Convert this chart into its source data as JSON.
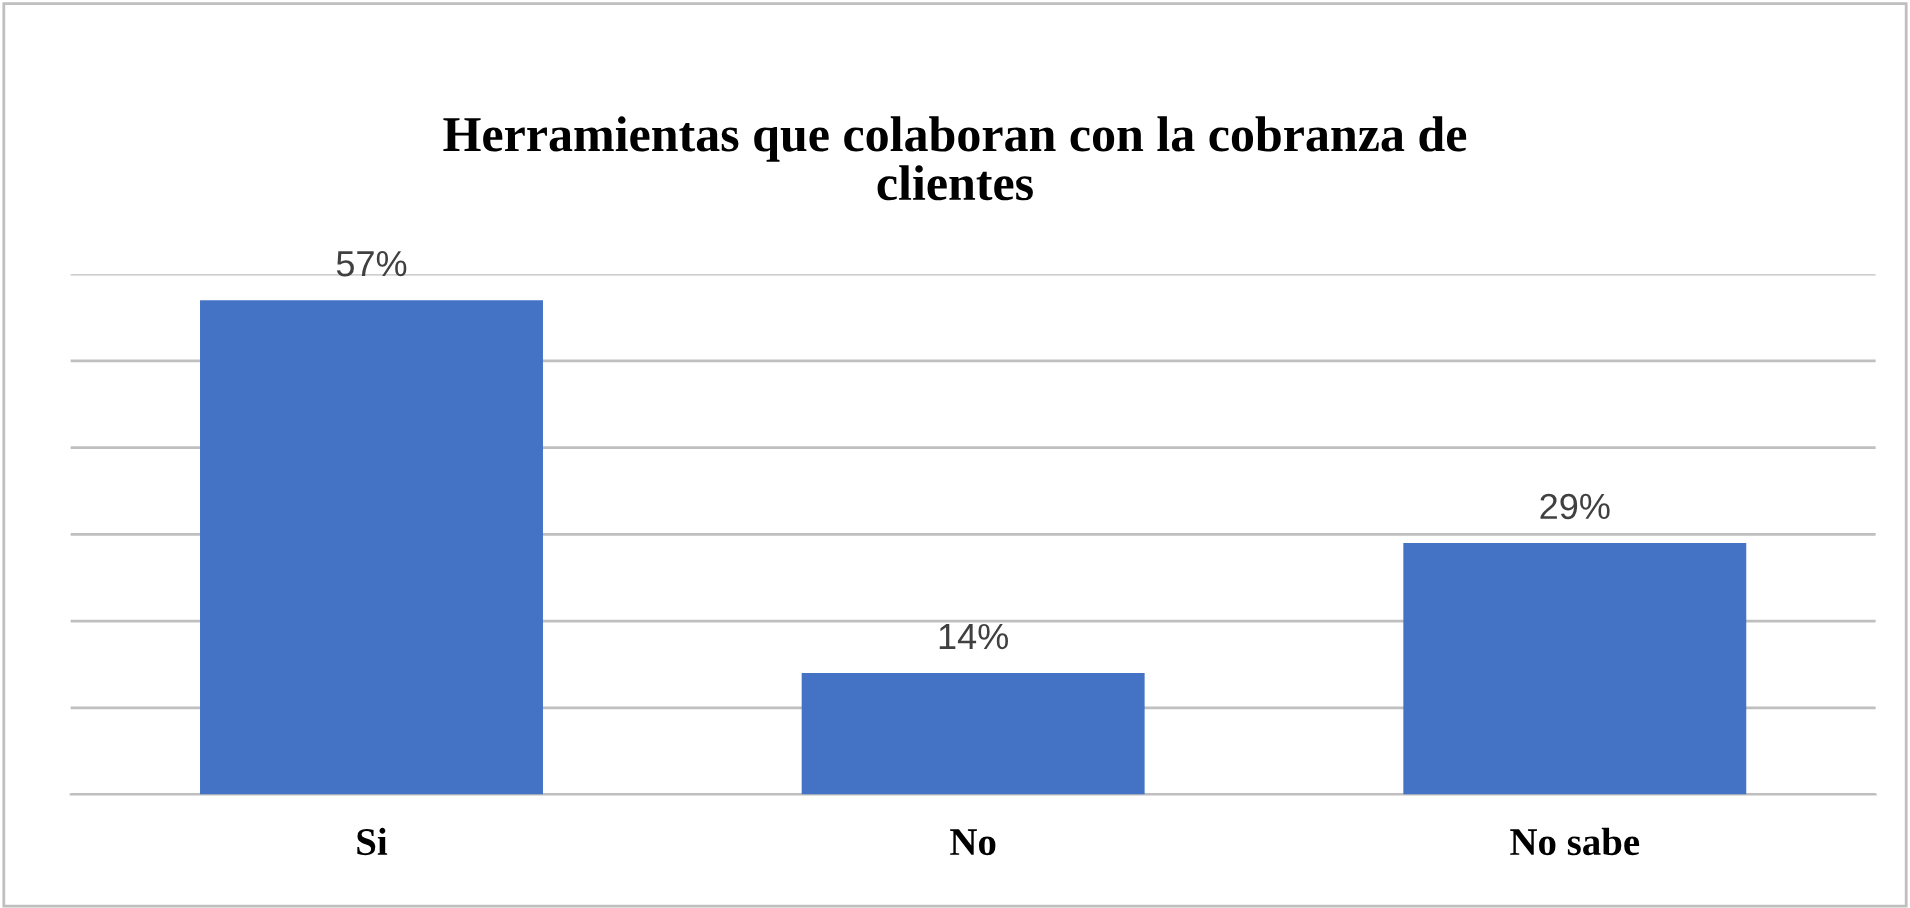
{
  "chart_data": {
    "type": "bar",
    "title": "Herramientas que colaboran con la cobranza de\nclientes",
    "categories": [
      "Si",
      "No",
      "No sabe"
    ],
    "values": [
      57,
      14,
      29
    ],
    "value_labels": [
      "57%",
      "14%",
      "29%"
    ],
    "color": "#4472c4",
    "ylim": [
      0,
      60
    ],
    "yticks": [
      {
        "value": 0,
        "label": null
      },
      {
        "value": 10,
        "label": null
      },
      {
        "value": 20,
        "label": null
      },
      {
        "value": 30,
        "label": null
      },
      {
        "value": 40,
        "label": null
      },
      {
        "value": 50,
        "label": null
      },
      {
        "value": 60,
        "label": null
      }
    ],
    "grid": "y",
    "tick_labels": "x"
  }
}
